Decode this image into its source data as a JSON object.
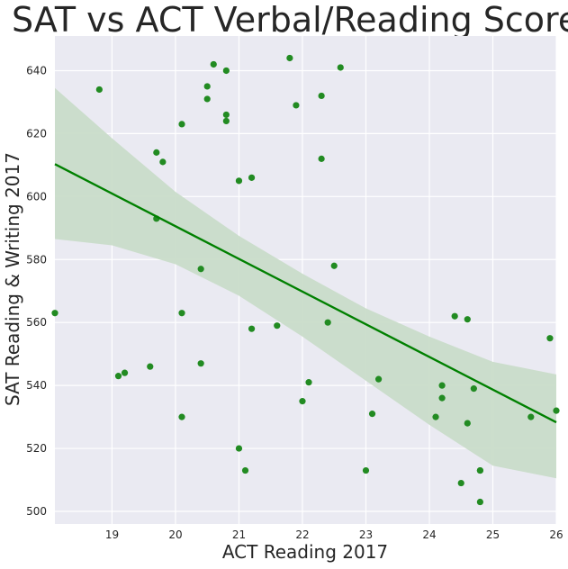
{
  "chart_data": {
    "type": "scatter",
    "title": "SAT vs ACT Verbal/Reading Scores",
    "xlabel": "ACT Reading 2017",
    "ylabel": "SAT Reading & Writing 2017",
    "xlim": [
      18.1,
      26.0
    ],
    "ylim": [
      496,
      651
    ],
    "xticks": [
      19,
      20,
      21,
      22,
      23,
      24,
      25,
      26
    ],
    "yticks": [
      500,
      520,
      540,
      560,
      580,
      600,
      620,
      640
    ],
    "grid": true,
    "point_color": "#228b22",
    "line_color": "#008000",
    "band_color": "#c9dcc9",
    "background": "#eaeaf2",
    "regression_line": {
      "x": [
        18.1,
        26.0
      ],
      "y": [
        610.3,
        528.3
      ]
    },
    "confidence_band": {
      "x": [
        18.1,
        19.0,
        20.0,
        21.0,
        22.0,
        23.0,
        24.0,
        25.0,
        26.0
      ],
      "upper": [
        634.5,
        618.5,
        601.5,
        587.5,
        575.5,
        564.5,
        555.5,
        547.5,
        543.5
      ],
      "lower": [
        586.5,
        584.5,
        578.5,
        568.5,
        555.5,
        541.5,
        527.5,
        514.5,
        510.5
      ]
    },
    "points": [
      {
        "x": 18.1,
        "y": 563
      },
      {
        "x": 18.8,
        "y": 634
      },
      {
        "x": 19.1,
        "y": 543
      },
      {
        "x": 19.2,
        "y": 544
      },
      {
        "x": 19.6,
        "y": 546
      },
      {
        "x": 19.7,
        "y": 614
      },
      {
        "x": 19.7,
        "y": 593
      },
      {
        "x": 19.8,
        "y": 611
      },
      {
        "x": 20.1,
        "y": 623
      },
      {
        "x": 20.1,
        "y": 563
      },
      {
        "x": 20.1,
        "y": 530
      },
      {
        "x": 20.4,
        "y": 577
      },
      {
        "x": 20.4,
        "y": 547
      },
      {
        "x": 20.5,
        "y": 635
      },
      {
        "x": 20.5,
        "y": 631
      },
      {
        "x": 20.6,
        "y": 642
      },
      {
        "x": 20.8,
        "y": 640
      },
      {
        "x": 20.8,
        "y": 626
      },
      {
        "x": 20.8,
        "y": 624
      },
      {
        "x": 21.0,
        "y": 605
      },
      {
        "x": 21.0,
        "y": 520
      },
      {
        "x": 21.1,
        "y": 513
      },
      {
        "x": 21.2,
        "y": 606
      },
      {
        "x": 21.2,
        "y": 558
      },
      {
        "x": 21.6,
        "y": 559
      },
      {
        "x": 21.8,
        "y": 644
      },
      {
        "x": 21.9,
        "y": 629
      },
      {
        "x": 22.0,
        "y": 535
      },
      {
        "x": 22.1,
        "y": 541
      },
      {
        "x": 22.3,
        "y": 632
      },
      {
        "x": 22.3,
        "y": 612
      },
      {
        "x": 22.4,
        "y": 560
      },
      {
        "x": 22.5,
        "y": 578
      },
      {
        "x": 22.6,
        "y": 641
      },
      {
        "x": 23.0,
        "y": 513
      },
      {
        "x": 23.1,
        "y": 531
      },
      {
        "x": 23.2,
        "y": 542
      },
      {
        "x": 24.1,
        "y": 530
      },
      {
        "x": 24.2,
        "y": 540
      },
      {
        "x": 24.2,
        "y": 536
      },
      {
        "x": 24.4,
        "y": 562
      },
      {
        "x": 24.5,
        "y": 509
      },
      {
        "x": 24.6,
        "y": 561
      },
      {
        "x": 24.6,
        "y": 528
      },
      {
        "x": 24.7,
        "y": 539
      },
      {
        "x": 24.8,
        "y": 513
      },
      {
        "x": 24.8,
        "y": 513
      },
      {
        "x": 24.8,
        "y": 503
      },
      {
        "x": 25.6,
        "y": 530
      },
      {
        "x": 25.9,
        "y": 555
      },
      {
        "x": 26.0,
        "y": 532
      }
    ]
  }
}
